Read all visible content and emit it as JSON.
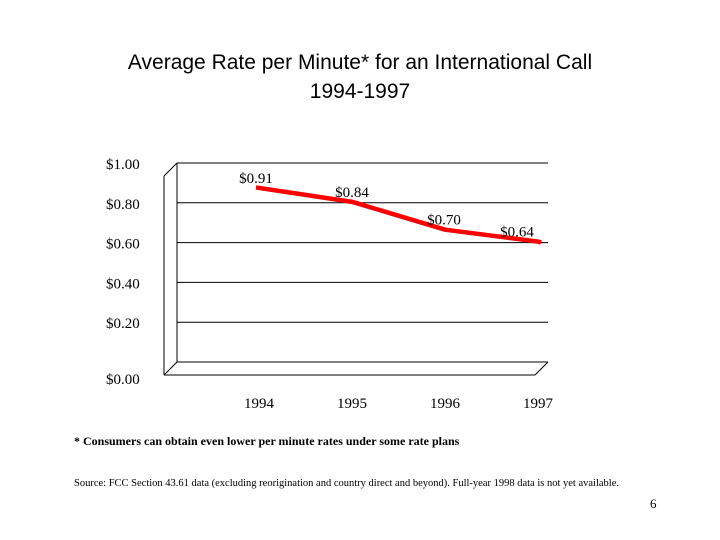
{
  "chart_data": {
    "type": "line",
    "title": "Average Rate per Minute* for an International Call",
    "subtitle": "1994-1997",
    "categories": [
      "1994",
      "1995",
      "1996",
      "1997"
    ],
    "series": [
      {
        "values": [
          0.91,
          0.84,
          0.7,
          0.64
        ],
        "labels": [
          "$0.91",
          "$0.84",
          "$0.70",
          "$0.64"
        ],
        "color": "#ff0000"
      }
    ],
    "ylim": [
      0,
      1.0
    ],
    "yticks": [
      0,
      0.2,
      0.4,
      0.6,
      0.8,
      1.0
    ],
    "ytick_labels": [
      "$0.00",
      "$0.20",
      "$0.40",
      "$0.60",
      "$0.80",
      "$1.00"
    ],
    "grid": true,
    "xlabel": "",
    "ylabel": ""
  },
  "footnote": "* Consumers can obtain even lower per minute rates under some rate plans",
  "source": "Source: FCC Section 43.61 data (excluding reorigination and country direct and beyond). Full-year 1998 data is not yet available.",
  "page_number": "6"
}
